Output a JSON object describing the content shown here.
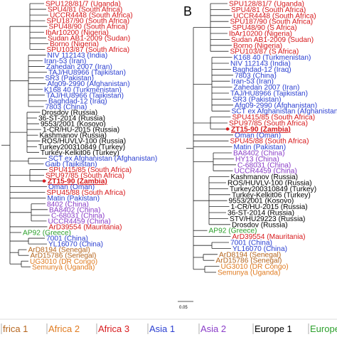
{
  "panel_b_letter": "B",
  "scale_bar_label": "0.05",
  "colors": {
    "africa1": "#b5651d",
    "africa2": "#e07b20",
    "africa3": "#d7191c",
    "asia1": "#2b3fd1",
    "asia2": "#8a3cc8",
    "europe1": "#000000",
    "europe2": "#2ca02c"
  },
  "legend": [
    {
      "label": "frica 1",
      "color": "#b5651d"
    },
    {
      "label": "Africa 2",
      "color": "#e07b20"
    },
    {
      "label": "Africa 3",
      "color": "#d7191c"
    },
    {
      "label": "Asia 1",
      "color": "#2b3fd1"
    },
    {
      "label": "Asia 2",
      "color": "#8a3cc8"
    },
    {
      "label": "Europe 1",
      "color": "#000000"
    },
    {
      "label": "Europe",
      "color": "#2ca02c"
    }
  ],
  "panel_a": {
    "taxa": [
      {
        "label": "SPU128/81/7 (Uganda)",
        "group": "africa3"
      },
      {
        "label": "SPU4/81 (South Africa)",
        "group": "africa3"
      },
      {
        "label": "UCCR4448 (South Africa)",
        "group": "africa3"
      },
      {
        "label": "SPU187/90 (South Africa)",
        "group": "africa3"
      },
      {
        "label": "SPU48/90 (South Africa)",
        "group": "africa3"
      },
      {
        "label": "IbAr10200 (Nigeria)",
        "group": "africa3"
      },
      {
        "label": "Sudan AB1-2009 (Sudan)",
        "group": "africa3"
      },
      {
        "label": "Borno (Nigeria)",
        "group": "africa3"
      },
      {
        "label": "SPU103/87 (South Africa)",
        "group": "africa3"
      },
      {
        "label": "NIV 112143 (India)",
        "group": "asia1"
      },
      {
        "label": "Iran-53 (Iran)",
        "group": "asia1"
      },
      {
        "label": "Zahedan 2007 (Iran)",
        "group": "asia1"
      },
      {
        "label": "TAJ/HU8966 (Tajikistan)",
        "group": "asia1"
      },
      {
        "label": "SR3 (Pakistan)",
        "group": "asia1"
      },
      {
        "label": "Afg09-2990 (Afghanistan)",
        "group": "asia1"
      },
      {
        "label": "K168 40 (Turkmenistan)",
        "group": "asia1"
      },
      {
        "label": "TAJ/HU8966 (Tajikistan)",
        "group": "asia1"
      },
      {
        "label": "Baghdad-12 (Iraq)",
        "group": "asia1"
      },
      {
        "label": "7803 (China)",
        "group": "asia1"
      },
      {
        "label": "Drosdov (Russia)",
        "group": "europe1"
      },
      {
        "label": "36-ST-2014 (Russia)",
        "group": "europe1"
      },
      {
        "label": "9553/2001 (Kosovo)",
        "group": "europe1"
      },
      {
        "label": "1-CR/HU-2015 (Russia)",
        "group": "europe1"
      },
      {
        "label": "Kashmanov (Russia)",
        "group": "europe1"
      },
      {
        "label": "ROS/HUVLV-100 (Russia)",
        "group": "europe1"
      },
      {
        "label": "Turkey200310849 (Turkey)",
        "group": "europe1"
      },
      {
        "label": "Turkey-Kelkit06 (Turkey)",
        "group": "europe1"
      },
      {
        "label": "SCT ex Afghanistan (Afghanistan)",
        "group": "asia1"
      },
      {
        "label": "Gaib (Tajikistan)",
        "group": "asia1"
      },
      {
        "label": "SPU415/85 (South Africa)",
        "group": "africa3"
      },
      {
        "label": "SPU97/85 (South Africa)",
        "group": "africa3"
      },
      {
        "label": "ZT15-90 (Zambia)",
        "group": "africa3",
        "highlight": true
      },
      {
        "label": "Oman (Oman)",
        "group": "asia1"
      },
      {
        "label": "SPU45/88 (South Africa)",
        "group": "africa3"
      },
      {
        "label": "Matin (Pakistan)",
        "group": "asia1"
      },
      {
        "label": "8402 (China)",
        "group": "asia2"
      },
      {
        "label": "BA8402 (China)",
        "group": "asia2"
      },
      {
        "label": "C-68031 (China)",
        "group": "asia2"
      },
      {
        "label": "UCCR4459 (China)",
        "group": "asia2"
      },
      {
        "label": "ArD39554 (Mauritania)",
        "group": "africa3"
      },
      {
        "label": "AP92 (Greece)",
        "group": "europe2"
      },
      {
        "label": "7001 (China)",
        "group": "asia1"
      },
      {
        "label": "YL16070 (China)",
        "group": "asia1"
      },
      {
        "label": "ArD8194 (Senegal)",
        "group": "africa1"
      },
      {
        "label": "ArD15786 (Senegal)",
        "group": "africa1"
      },
      {
        "label": "UG3010 (DR Congo)",
        "group": "africa2"
      },
      {
        "label": "Semunya (Uganda)",
        "group": "africa2"
      }
    ]
  },
  "panel_b": {
    "taxa": [
      {
        "label": "SPU128/81/7 (Uganda)",
        "group": "africa3"
      },
      {
        "label": "SPU4/81 (South Africa)",
        "group": "africa3"
      },
      {
        "label": "UCCR4448 (South Africa)",
        "group": "africa3"
      },
      {
        "label": "SPU187/90 (South Africa)",
        "group": "africa3"
      },
      {
        "label": "SPU48/90 (S Africa)",
        "group": "africa3"
      },
      {
        "label": "IbAr10200 (Nigeria)",
        "group": "africa3"
      },
      {
        "label": "Sudan AB1-2009 (Sudan)",
        "group": "africa3"
      },
      {
        "label": "Borno (Nigeria)",
        "group": "africa3"
      },
      {
        "label": "SPU103/87 (S Africa)",
        "group": "africa3"
      },
      {
        "label": "K168 40 (Turkmenistan)",
        "group": "asia1"
      },
      {
        "label": "NIV 112143 (India)",
        "group": "asia1"
      },
      {
        "label": "Baghdad-12 (Iraq)",
        "group": "asia1"
      },
      {
        "label": "7803 (China)",
        "group": "asia1"
      },
      {
        "label": "Iran-53 (Iran)",
        "group": "asia1"
      },
      {
        "label": "Zahedan 2007 (Iran)",
        "group": "asia1"
      },
      {
        "label": "TAJ/HU8966 (Tajikistan)",
        "group": "asia1"
      },
      {
        "label": "SR3 (Pakistan)",
        "group": "asia1"
      },
      {
        "label": "Afg09-2990 (Afghanistan)",
        "group": "asia1"
      },
      {
        "label": "SCT ex Afghanistan (Afghanistan)",
        "group": "asia1"
      },
      {
        "label": "SPU415/85 (South Africa)",
        "group": "africa3"
      },
      {
        "label": "SPU97/85 (South Africa)",
        "group": "africa3"
      },
      {
        "label": "ZT15-90 (Zambia)",
        "group": "africa3",
        "highlight": true
      },
      {
        "label": "Oman (Oman)",
        "group": "asia1"
      },
      {
        "label": "SPU45/88 (South Africa)",
        "group": "africa3"
      },
      {
        "label": "Matin (Pakistan)",
        "group": "asia1"
      },
      {
        "label": "BA8402 (China)",
        "group": "asia2"
      },
      {
        "label": "HY13 (China)",
        "group": "asia2"
      },
      {
        "label": "C-68031 (China)",
        "group": "asia2"
      },
      {
        "label": "UCCR4459 (China)",
        "group": "asia2"
      },
      {
        "label": "Kashmanov (Russia)",
        "group": "europe1"
      },
      {
        "label": "ROS/HUVLV-100 (Russia)",
        "group": "europe1"
      },
      {
        "label": "Turkey200310849 (Turkey)",
        "group": "europe1"
      },
      {
        "label": "Turkey-Kelkit06 (Turkey)",
        "group": "europe1"
      },
      {
        "label": "9553/2001 (Kosovo)",
        "group": "europe1"
      },
      {
        "label": "1-CR/HU-2015 (Russia)",
        "group": "europe1"
      },
      {
        "label": "36-ST-2014 (Russia)",
        "group": "europe1"
      },
      {
        "label": "STV/HU29223 (Russia)",
        "group": "europe1"
      },
      {
        "label": "Drosdov (Russia)",
        "group": "europe1"
      },
      {
        "label": "AP92 (Greece)",
        "group": "europe2"
      },
      {
        "label": "ArD39554 (Mauritania)",
        "group": "africa3"
      },
      {
        "label": "7001 (China)",
        "group": "asia1"
      },
      {
        "label": "YL16070 (China)",
        "group": "asia1"
      },
      {
        "label": "ArD8194 (Senegal)",
        "group": "africa1"
      },
      {
        "label": "ArD15786 (Senegal)",
        "group": "africa1"
      },
      {
        "label": "UG3010 (DR Congo)",
        "group": "africa2"
      },
      {
        "label": "Semunya (Uganda)",
        "group": "africa2"
      }
    ]
  }
}
